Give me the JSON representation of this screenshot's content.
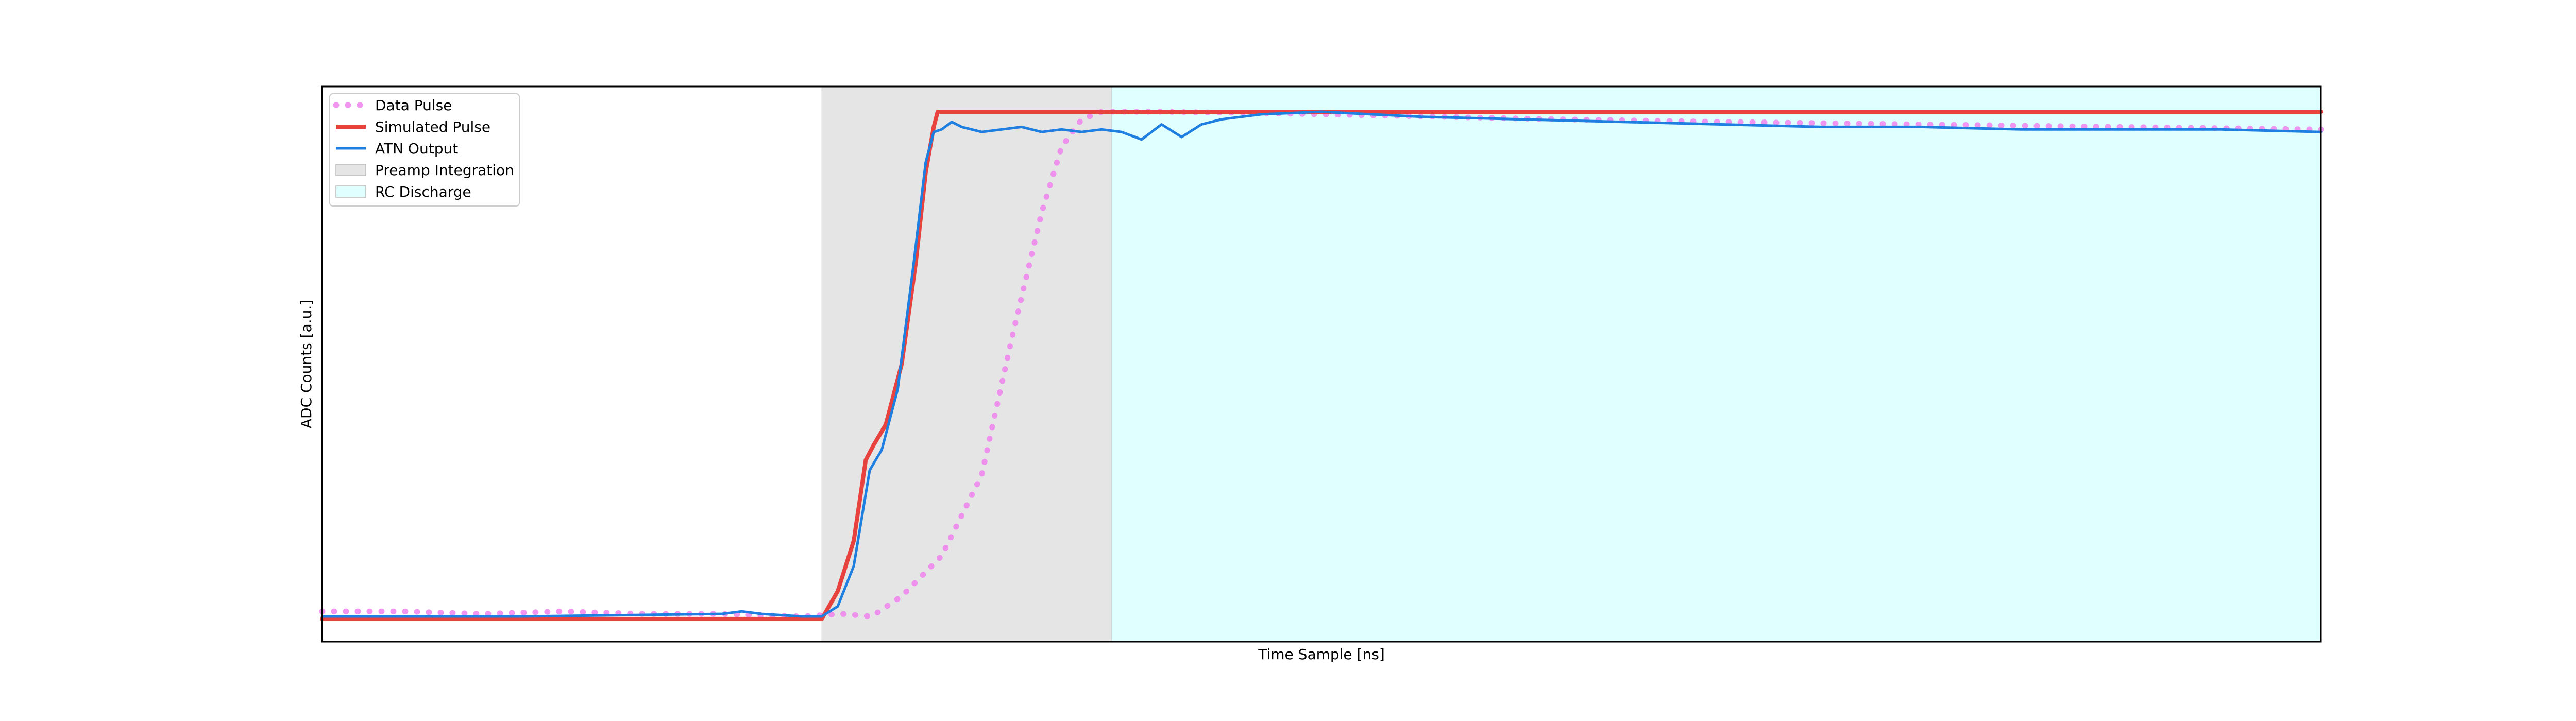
{
  "chart_data": {
    "type": "line",
    "title": "",
    "xlabel": "Time Sample [ns]",
    "ylabel": "ADC Counts [a.u.]",
    "x_ticks_shown": false,
    "y_ticks_shown": false,
    "grid": false,
    "legend_position": "upper-left",
    "xlim": [
      0,
      1000
    ],
    "ylim": [
      -0.05,
      1.05
    ],
    "regions": [
      {
        "name": "Preamp Integration",
        "x_start": 250,
        "x_end": 395,
        "color": "#e5e5e5"
      },
      {
        "name": "RC Discharge",
        "x_start": 395,
        "x_end": 1000,
        "color": "#e0ffff"
      }
    ],
    "series": [
      {
        "name": "Data Pulse",
        "style": "dotted",
        "color": "#ee82ee",
        "x": [
          0,
          40,
          80,
          120,
          160,
          200,
          240,
          260,
          275,
          290,
          310,
          330,
          345,
          360,
          370,
          380,
          390,
          400,
          420,
          460,
          500,
          560,
          620,
          700,
          800,
          900,
          1000
        ],
        "y": [
          0.01,
          0.01,
          0.005,
          0.01,
          0.005,
          0.005,
          0.0,
          0.005,
          0.0,
          0.04,
          0.12,
          0.28,
          0.55,
          0.8,
          0.93,
          0.985,
          1.0,
          1.0,
          1.0,
          0.998,
          0.995,
          0.99,
          0.985,
          0.98,
          0.975,
          0.97,
          0.965
        ]
      },
      {
        "name": "Simulated Pulse",
        "style": "solid",
        "color": "#e8423f",
        "x": [
          0,
          100,
          200,
          250,
          258,
          266,
          272,
          276,
          282,
          290,
          297,
          302,
          306,
          308,
          1000
        ],
        "y": [
          -0.005,
          -0.005,
          -0.005,
          -0.005,
          0.05,
          0.15,
          0.31,
          0.34,
          0.38,
          0.5,
          0.7,
          0.88,
          0.97,
          1.0,
          1.0
        ]
      },
      {
        "name": "ATN Output",
        "style": "solid",
        "color": "#1e7fe0",
        "x": [
          0,
          100,
          200,
          210,
          220,
          240,
          250,
          258,
          266,
          274,
          280,
          288,
          296,
          302,
          306,
          310,
          315,
          320,
          330,
          340,
          350,
          360,
          370,
          380,
          390,
          400,
          410,
          420,
          430,
          440,
          450,
          470,
          500,
          550,
          600,
          650,
          700,
          750,
          800,
          850,
          900,
          950,
          1000
        ],
        "y": [
          0.0,
          0.0,
          0.005,
          0.01,
          0.005,
          0.0,
          0.0,
          0.02,
          0.1,
          0.29,
          0.33,
          0.45,
          0.7,
          0.9,
          0.96,
          0.965,
          0.98,
          0.97,
          0.96,
          0.965,
          0.97,
          0.96,
          0.965,
          0.96,
          0.965,
          0.96,
          0.945,
          0.975,
          0.95,
          0.975,
          0.985,
          0.995,
          1.0,
          0.99,
          0.985,
          0.98,
          0.975,
          0.97,
          0.97,
          0.965,
          0.965,
          0.965,
          0.96
        ]
      }
    ]
  },
  "legend": {
    "items": [
      {
        "label": "Data Pulse",
        "kind": "dotted-line",
        "color": "#ee82ee"
      },
      {
        "label": "Simulated Pulse",
        "kind": "line",
        "color": "#e8423f"
      },
      {
        "label": "ATN Output",
        "kind": "line",
        "color": "#1e7fe0"
      },
      {
        "label": "Preamp Integration",
        "kind": "patch",
        "color": "#e5e5e5"
      },
      {
        "label": "RC Discharge",
        "kind": "patch",
        "color": "#e0ffff"
      }
    ]
  },
  "colors": {
    "axes_frame": "#000000",
    "legend_border": "#cccccc"
  }
}
